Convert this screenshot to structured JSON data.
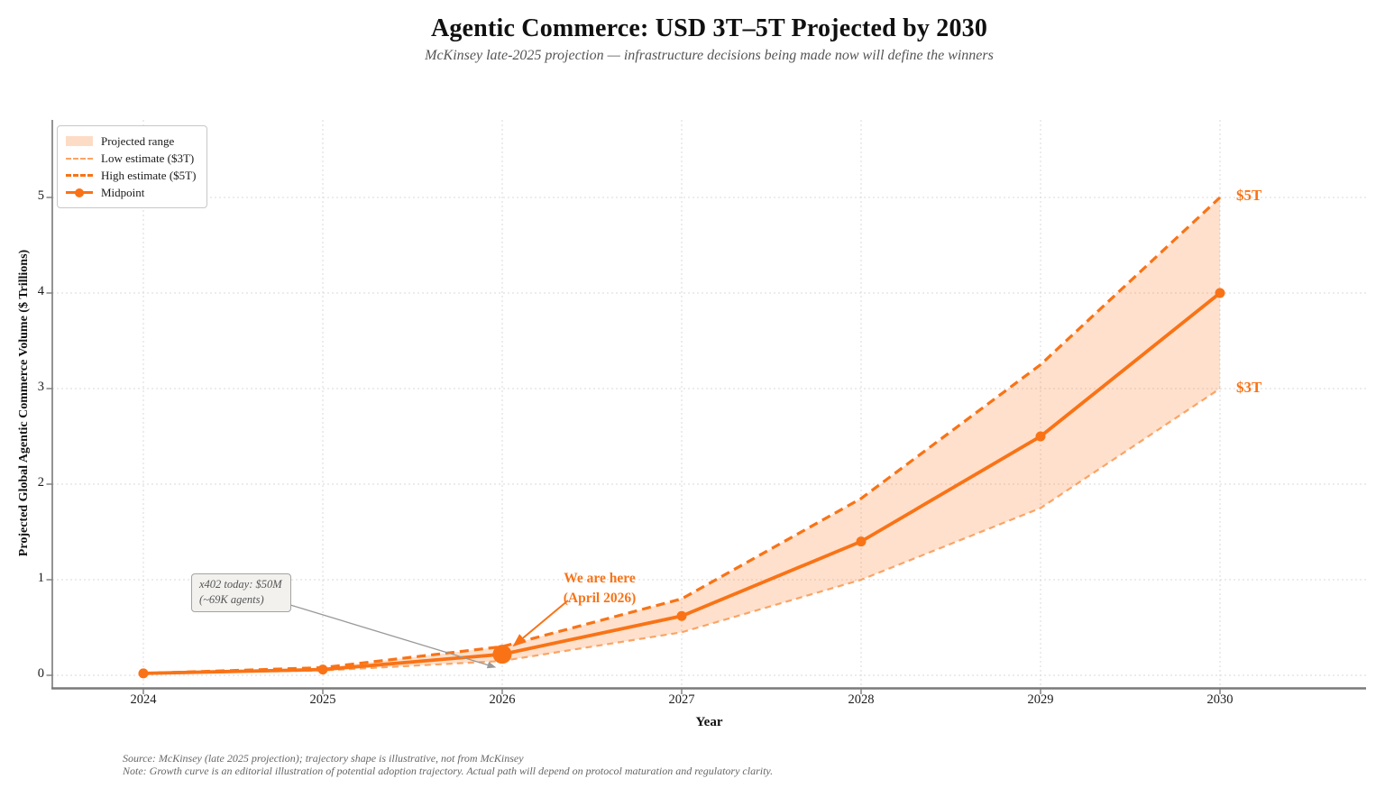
{
  "header": {
    "title": "Agentic Commerce: USD 3T–5T Projected by 2030",
    "subtitle": "McKinsey late-2025 projection — infrastructure decisions being made now will define the winners"
  },
  "legend": {
    "items": [
      {
        "label": "Projected range"
      },
      {
        "label": "Low estimate ($3T)"
      },
      {
        "label": "High estimate ($5T)"
      },
      {
        "label": "Midpoint"
      }
    ]
  },
  "axes": {
    "x_label": "Year",
    "y_label": "Projected Global Agentic Commerce Volume ($ Trillions)"
  },
  "annotations": {
    "high_label": "$5T",
    "low_label": "$3T",
    "here": {
      "line1": "We are here",
      "line2": "(April 2026)"
    },
    "x402": {
      "line1": "x402 today: $50M",
      "line2": "(~69K agents)"
    }
  },
  "footer": {
    "source": "Source: McKinsey (late 2025 projection); trajectory shape is illustrative, not from McKinsey",
    "note": "Note: Growth curve is an editorial illustration of potential adoption trajectory. Actual path will depend on protocol maturation and regulatory clarity."
  },
  "colors": {
    "accent": "#f97316",
    "accent_light": "#fba465",
    "band_fill": "#f97316",
    "band_opacity": "0.22",
    "grid": "#d9d9d9",
    "spine": "#7a7a7a",
    "annotation_gray": "#999999"
  },
  "chart_data": {
    "type": "line",
    "title": "Agentic Commerce: USD 3T–5T Projected by 2030",
    "subtitle": "McKinsey late-2025 projection — infrastructure decisions being made now will define the winners",
    "xlabel": "Year",
    "ylabel": "Projected Global Agentic Commerce Volume ($ Trillions)",
    "x": [
      2024,
      2025,
      2026,
      2027,
      2028,
      2029,
      2030
    ],
    "x_tick_labels": [
      "2024",
      "2025",
      "2026",
      "2027",
      "2028",
      "2029",
      "2030"
    ],
    "y_ticks": [
      0,
      1,
      2,
      3,
      4,
      5
    ],
    "ylim": [
      -0.12,
      5.8
    ],
    "grid": true,
    "legend_position": "upper left",
    "series": [
      {
        "name": "Low estimate ($3T)",
        "style": "dashed-light",
        "color": "#fba465",
        "values": [
          0.02,
          0.05,
          0.15,
          0.45,
          1.0,
          1.75,
          3.0
        ]
      },
      {
        "name": "High estimate ($5T)",
        "style": "dashed",
        "color": "#f97316",
        "values": [
          0.02,
          0.08,
          0.3,
          0.8,
          1.85,
          3.25,
          5.0
        ]
      },
      {
        "name": "Midpoint",
        "style": "solid",
        "color": "#f97316",
        "markers": true,
        "emphasis_index": 2,
        "values": [
          0.02,
          0.06,
          0.22,
          0.62,
          1.4,
          2.5,
          4.0
        ]
      }
    ],
    "band": {
      "name": "Projected range",
      "low": [
        0.02,
        0.05,
        0.15,
        0.45,
        1.0,
        1.75,
        3.0
      ],
      "high": [
        0.02,
        0.08,
        0.3,
        0.8,
        1.85,
        3.25,
        5.0
      ]
    },
    "end_labels": {
      "high": "$5T",
      "low": "$3T"
    },
    "highlight_point": {
      "x": 2026,
      "y": 0.22,
      "label": "We are here (April 2026)"
    },
    "callout": {
      "text": "x402 today: $50M (~69K agents)",
      "points_to_x": 2026
    }
  }
}
